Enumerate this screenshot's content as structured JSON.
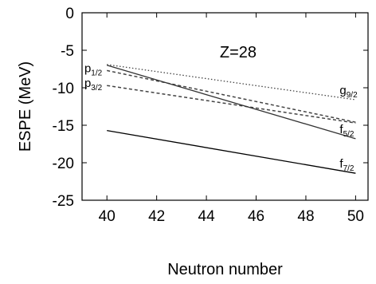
{
  "chart_data": {
    "type": "line",
    "xlabel": "Neutron number",
    "ylabel": "ESPE (MeV)",
    "xlim": [
      39,
      50.5
    ],
    "ylim": [
      -25,
      0
    ],
    "xticks": [
      40,
      42,
      44,
      46,
      48,
      50
    ],
    "yticks": [
      0,
      -5,
      -10,
      -15,
      -20,
      -25
    ],
    "grid": false,
    "annotations": [
      {
        "text": "Z=28",
        "x": 45.5,
        "y": -5.2
      }
    ],
    "series": [
      {
        "name": "g9/2",
        "label_main": "g",
        "label_sub": "9/2",
        "label_side": "right",
        "x": [
          40,
          50
        ],
        "y": [
          -6.9,
          -11.6
        ],
        "line_style": "dotted",
        "color": "#444444"
      },
      {
        "name": "p1/2",
        "label_main": "p",
        "label_sub": "1/2",
        "label_side": "left",
        "x": [
          40,
          50
        ],
        "y": [
          -7.7,
          -14.6
        ],
        "line_style": "dashed",
        "color": "#444444"
      },
      {
        "name": "p3/2",
        "label_main": "p",
        "label_sub": "3/2",
        "label_side": "left",
        "x": [
          40,
          50
        ],
        "y": [
          -9.7,
          -14.7
        ],
        "line_style": "dashed",
        "color": "#444444"
      },
      {
        "name": "f5/2",
        "label_main": "f",
        "label_sub": "5/2",
        "label_side": "right",
        "x": [
          40,
          50
        ],
        "y": [
          -7.0,
          -16.8
        ],
        "line_style": "solid",
        "color": "#333333"
      },
      {
        "name": "f7/2",
        "label_main": "f",
        "label_sub": "7/2",
        "label_side": "right",
        "x": [
          40,
          50
        ],
        "y": [
          -15.7,
          -21.4
        ],
        "line_style": "solid",
        "color": "#000000"
      }
    ]
  }
}
